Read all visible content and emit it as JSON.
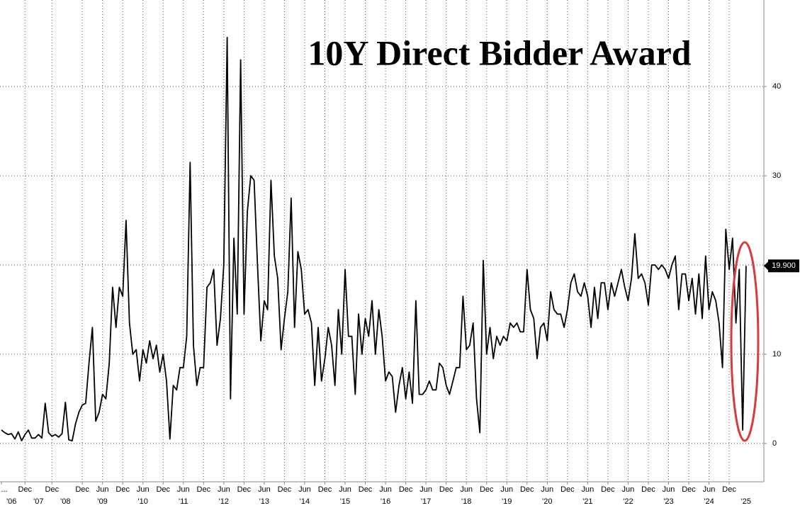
{
  "chart_data": {
    "type": "line",
    "title": "10Y Direct Bidder Award",
    "x": [
      "2006-02",
      "2006-03",
      "2006-05",
      "2006-06",
      "2006-08",
      "2006-09",
      "2006-11",
      "2006-12",
      "2007-02",
      "2007-03",
      "2007-05",
      "2007-06",
      "2007-08",
      "2007-09",
      "2007-11",
      "2007-12",
      "2008-02",
      "2008-03",
      "2008-05",
      "2008-06",
      "2008-08",
      "2008-09",
      "2008-10",
      "2008-11",
      "2008-12",
      "2009-01",
      "2009-02",
      "2009-03",
      "2009-04",
      "2009-05",
      "2009-06",
      "2009-07",
      "2009-08",
      "2009-09",
      "2009-10",
      "2009-11",
      "2009-12",
      "2010-01",
      "2010-02",
      "2010-03",
      "2010-04",
      "2010-05",
      "2010-06",
      "2010-07",
      "2010-08",
      "2010-09",
      "2010-10",
      "2010-11",
      "2010-12",
      "2011-01",
      "2011-02",
      "2011-03",
      "2011-04",
      "2011-05",
      "2011-06",
      "2011-07",
      "2011-08",
      "2011-09",
      "2011-10",
      "2011-11",
      "2011-12",
      "2012-01",
      "2012-02",
      "2012-03",
      "2012-04",
      "2012-05",
      "2012-06",
      "2012-07",
      "2012-08",
      "2012-09",
      "2012-10",
      "2012-11",
      "2012-12",
      "2013-01",
      "2013-02",
      "2013-03",
      "2013-04",
      "2013-05",
      "2013-06",
      "2013-07",
      "2013-08",
      "2013-09",
      "2013-10",
      "2013-11",
      "2013-12",
      "2014-01",
      "2014-02",
      "2014-03",
      "2014-04",
      "2014-05",
      "2014-06",
      "2014-07",
      "2014-08",
      "2014-09",
      "2014-10",
      "2014-11",
      "2014-12",
      "2015-01",
      "2015-02",
      "2015-03",
      "2015-04",
      "2015-05",
      "2015-06",
      "2015-07",
      "2015-08",
      "2015-09",
      "2015-10",
      "2015-11",
      "2015-12",
      "2016-01",
      "2016-02",
      "2016-03",
      "2016-04",
      "2016-05",
      "2016-06",
      "2016-07",
      "2016-08",
      "2016-09",
      "2016-10",
      "2016-11",
      "2016-12",
      "2017-01",
      "2017-02",
      "2017-03",
      "2017-04",
      "2017-05",
      "2017-06",
      "2017-07",
      "2017-08",
      "2017-09",
      "2017-10",
      "2017-11",
      "2017-12",
      "2018-01",
      "2018-02",
      "2018-03",
      "2018-04",
      "2018-05",
      "2018-06",
      "2018-07",
      "2018-08",
      "2018-09",
      "2018-10",
      "2018-11",
      "2018-12",
      "2019-01",
      "2019-02",
      "2019-03",
      "2019-04",
      "2019-05",
      "2019-06",
      "2019-07",
      "2019-08",
      "2019-09",
      "2019-10",
      "2019-11",
      "2019-12",
      "2020-01",
      "2020-02",
      "2020-03",
      "2020-04",
      "2020-05",
      "2020-06",
      "2020-07",
      "2020-08",
      "2020-09",
      "2020-10",
      "2020-11",
      "2020-12",
      "2021-01",
      "2021-02",
      "2021-03",
      "2021-04",
      "2021-05",
      "2021-06",
      "2021-07",
      "2021-08",
      "2021-09",
      "2021-10",
      "2021-11",
      "2021-12",
      "2022-01",
      "2022-02",
      "2022-03",
      "2022-04",
      "2022-05",
      "2022-06",
      "2022-07",
      "2022-08",
      "2022-09",
      "2022-10",
      "2022-11",
      "2022-12",
      "2023-01",
      "2023-02",
      "2023-03",
      "2023-04",
      "2023-05",
      "2023-06",
      "2023-07",
      "2023-08",
      "2023-09",
      "2023-10",
      "2023-11",
      "2023-12",
      "2024-01",
      "2024-02",
      "2024-03",
      "2024-04",
      "2024-05",
      "2024-06",
      "2024-07",
      "2024-08",
      "2024-09",
      "2024-10",
      "2024-11",
      "2024-12",
      "2025-01",
      "2025-02",
      "2025-03",
      "2025-04",
      "2025-05"
    ],
    "values": [
      1.5,
      1.2,
      1.0,
      1.1,
      0.5,
      1.3,
      0.3,
      1.0,
      1.5,
      0.6,
      0.6,
      1.0,
      0.6,
      4.5,
      1.2,
      0.8,
      1.0,
      0.7,
      1.1,
      4.6,
      0.4,
      0.3,
      2.2,
      3.5,
      4.3,
      4.5,
      9,
      13,
      2.5,
      3.5,
      5.5,
      5,
      9,
      17.5,
      13,
      17.5,
      16.5,
      25,
      13.5,
      10,
      10.5,
      7,
      10.5,
      9,
      11.5,
      9.5,
      11,
      8,
      10,
      7,
      0.5,
      6.5,
      6,
      8.5,
      8.5,
      12,
      31.5,
      11,
      6.5,
      8.5,
      8.5,
      17.5,
      18,
      19.5,
      11,
      14,
      20,
      45.5,
      5,
      23,
      14.5,
      43,
      14.5,
      26,
      30,
      29.5,
      20,
      11.5,
      16,
      15,
      29.5,
      21,
      18.5,
      10.5,
      14,
      17,
      27.5,
      13,
      21.5,
      19.5,
      14.5,
      15,
      13.5,
      6.5,
      13,
      7,
      9.5,
      13,
      11,
      6.5,
      15,
      10,
      19.5,
      12,
      12,
      5.5,
      14.5,
      10,
      14,
      12,
      16,
      10,
      15,
      12,
      7,
      8,
      7.5,
      3.5,
      6.5,
      8.5,
      5,
      8,
      4.5,
      16,
      5.5,
      5.5,
      6,
      7,
      6,
      6,
      9,
      8.5,
      6.5,
      5.5,
      7,
      8.5,
      8.5,
      16.5,
      10.5,
      11,
      13.5,
      5,
      1.2,
      20.5,
      10,
      13,
      9.5,
      12,
      11,
      12,
      11.5,
      13.5,
      13,
      13.5,
      12.5,
      12.5,
      19.5,
      15,
      14,
      9.5,
      13,
      13.5,
      11.5,
      17,
      15,
      14.5,
      14.5,
      13,
      15,
      18,
      19,
      17,
      16.5,
      18,
      16.5,
      13,
      17.5,
      14,
      18,
      18,
      15,
      18,
      16.5,
      18,
      19.5,
      17.5,
      16,
      18.5,
      23.5,
      18.5,
      19,
      18,
      15.5,
      20,
      20,
      19.5,
      20,
      19.5,
      18.5,
      20,
      21,
      15,
      19,
      19,
      16,
      18.5,
      14.5,
      19,
      14,
      21,
      15,
      17,
      16,
      13.5,
      8.5,
      24,
      19.5,
      23,
      13.5,
      19.5,
      1.5,
      19.9
    ],
    "color": "#000000",
    "last_value": {
      "value": 19.9,
      "label": "19.900"
    },
    "ylim": [
      -4.3,
      49.7
    ],
    "yticks": [
      0,
      10,
      20,
      30,
      40
    ],
    "grid": true,
    "xticks": [
      {
        "value": "2006-02",
        "label": "..."
      },
      {
        "value": "2006-12",
        "label": "Dec"
      },
      {
        "value": "2007-12",
        "label": "Dec"
      },
      {
        "value": "2008-12",
        "label": "Dec"
      },
      {
        "value": "2009-06",
        "label": "Jun"
      },
      {
        "value": "2009-12",
        "label": "Dec"
      },
      {
        "value": "2010-06",
        "label": "Jun"
      },
      {
        "value": "2010-12",
        "label": "Dec"
      },
      {
        "value": "2011-06",
        "label": "Jun"
      },
      {
        "value": "2011-12",
        "label": "Dec"
      },
      {
        "value": "2012-06",
        "label": "Jun"
      },
      {
        "value": "2012-12",
        "label": "Dec"
      },
      {
        "value": "2013-06",
        "label": "Jun"
      },
      {
        "value": "2013-12",
        "label": "Dec"
      },
      {
        "value": "2014-06",
        "label": "Jun"
      },
      {
        "value": "2014-12",
        "label": "Dec"
      },
      {
        "value": "2015-06",
        "label": "Jun"
      },
      {
        "value": "2015-12",
        "label": "Dec"
      },
      {
        "value": "2016-06",
        "label": "Jun"
      },
      {
        "value": "2016-12",
        "label": "Dec"
      },
      {
        "value": "2017-06",
        "label": "Jun"
      },
      {
        "value": "2017-12",
        "label": "Dec"
      },
      {
        "value": "2018-06",
        "label": "Jun"
      },
      {
        "value": "2018-12",
        "label": "Dec"
      },
      {
        "value": "2019-06",
        "label": "Jun"
      },
      {
        "value": "2019-12",
        "label": "Dec"
      },
      {
        "value": "2020-06",
        "label": "Jun"
      },
      {
        "value": "2020-12",
        "label": "Dec"
      },
      {
        "value": "2021-06",
        "label": "Jun"
      },
      {
        "value": "2021-12",
        "label": "Dec"
      },
      {
        "value": "2022-06",
        "label": "Jun"
      },
      {
        "value": "2022-12",
        "label": "Dec"
      },
      {
        "value": "2023-06",
        "label": "Jun"
      },
      {
        "value": "2023-12",
        "label": "Dec"
      },
      {
        "value": "2024-06",
        "label": "Jun"
      },
      {
        "value": "2024-12",
        "label": "Dec"
      }
    ],
    "year_ticks": [
      {
        "value": "2006-06",
        "label": "'06"
      },
      {
        "value": "2007-06",
        "label": "'07"
      },
      {
        "value": "2008-06",
        "label": "'08"
      },
      {
        "value": "2009-06",
        "label": "'09"
      },
      {
        "value": "2010-06",
        "label": "'10"
      },
      {
        "value": "2011-06",
        "label": "'11"
      },
      {
        "value": "2012-06",
        "label": "'12"
      },
      {
        "value": "2013-06",
        "label": "'13"
      },
      {
        "value": "2014-06",
        "label": "'14"
      },
      {
        "value": "2015-06",
        "label": "'15"
      },
      {
        "value": "2016-06",
        "label": "'16"
      },
      {
        "value": "2017-06",
        "label": "'17"
      },
      {
        "value": "2018-06",
        "label": "'18"
      },
      {
        "value": "2019-06",
        "label": "'19"
      },
      {
        "value": "2020-06",
        "label": "'20"
      },
      {
        "value": "2021-06",
        "label": "'21"
      },
      {
        "value": "2022-06",
        "label": "'22"
      },
      {
        "value": "2023-06",
        "label": "'23"
      },
      {
        "value": "2024-06",
        "label": "'24"
      },
      {
        "value": "2025-05",
        "label": "'25"
      }
    ]
  }
}
